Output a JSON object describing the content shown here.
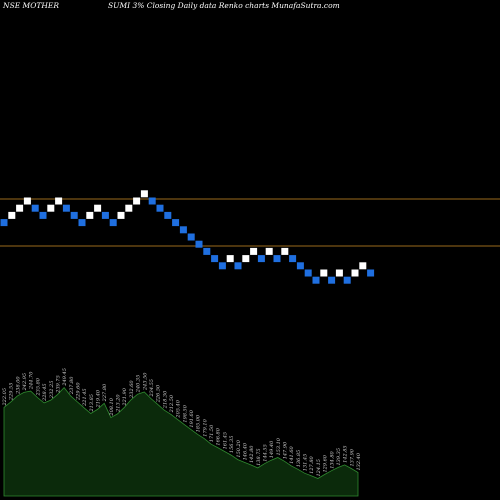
{
  "header": {
    "left": "NSE MOTHER",
    "right": "SUMI 3% Closing Daily data Renko charts MunafaSutra.com"
  },
  "colors": {
    "up": "#ffffff",
    "down": "#1f6fe0",
    "reference_line": "#9a6a1c",
    "volume_fill": "#0b2a0b",
    "volume_stroke": "#2f8a2f",
    "background": "#000000"
  },
  "chart_data": {
    "type": "renko",
    "brick_size": "3%",
    "reference_levels": [
      1,
      0
    ],
    "bricks": [
      {
        "d": "down",
        "level": -0.5
      },
      {
        "d": "up",
        "level": 0.5
      },
      {
        "d": "up",
        "level": 1.5
      },
      {
        "d": "up",
        "level": 2.5
      },
      {
        "d": "down",
        "level": 1.5
      },
      {
        "d": "down",
        "level": 0.5
      },
      {
        "d": "up",
        "level": 1.5
      },
      {
        "d": "up",
        "level": 2.5
      },
      {
        "d": "down",
        "level": 1.5
      },
      {
        "d": "down",
        "level": 0.5
      },
      {
        "d": "down",
        "level": -0.5
      },
      {
        "d": "up",
        "level": 0.5
      },
      {
        "d": "up",
        "level": 1.5
      },
      {
        "d": "down",
        "level": 0.5
      },
      {
        "d": "down",
        "level": -0.5
      },
      {
        "d": "up",
        "level": 0.5
      },
      {
        "d": "up",
        "level": 1.5
      },
      {
        "d": "up",
        "level": 2.5
      },
      {
        "d": "up",
        "level": 3.5
      },
      {
        "d": "down",
        "level": 2.5
      },
      {
        "d": "down",
        "level": 1.5
      },
      {
        "d": "down",
        "level": 0.5
      },
      {
        "d": "down",
        "level": -0.5
      },
      {
        "d": "down",
        "level": -1.5
      },
      {
        "d": "down",
        "level": -2.5
      },
      {
        "d": "down",
        "level": -3.5
      },
      {
        "d": "down",
        "level": -4.5
      },
      {
        "d": "down",
        "level": -5.5
      },
      {
        "d": "down",
        "level": -6.5
      },
      {
        "d": "up",
        "level": -5.5
      },
      {
        "d": "down",
        "level": -6.5
      },
      {
        "d": "up",
        "level": -5.5
      },
      {
        "d": "up",
        "level": -4.5
      },
      {
        "d": "down",
        "level": -5.5
      },
      {
        "d": "up",
        "level": -4.5
      },
      {
        "d": "down",
        "level": -5.5
      },
      {
        "d": "up",
        "level": -4.5
      },
      {
        "d": "down",
        "level": -5.5
      },
      {
        "d": "down",
        "level": -6.5
      },
      {
        "d": "down",
        "level": -7.5
      },
      {
        "d": "down",
        "level": -8.5
      },
      {
        "d": "up",
        "level": -7.5
      },
      {
        "d": "down",
        "level": -8.5
      },
      {
        "d": "up",
        "level": -7.5
      },
      {
        "d": "down",
        "level": -8.5
      },
      {
        "d": "up",
        "level": -7.5
      },
      {
        "d": "up",
        "level": -6.5
      },
      {
        "d": "down",
        "level": -7.5
      }
    ],
    "volume_labels": [
      "222.05",
      "229.55",
      "238.00",
      "242.95",
      "244.70",
      "235.80",
      "228.45",
      "232.25",
      "239.75",
      "249.45",
      "237.80",
      "229.60",
      "221.45",
      "213.85",
      "219.40",
      "227.80",
      "208.10",
      "213.20",
      "221.90",
      "232.60",
      "240.35",
      "243.50",
      "234.55",
      "226.50",
      "218.30",
      "212.50",
      "205.40",
      "198.50",
      "191.60",
      "185.00",
      "179.10",
      "171.50",
      "166.80",
      "161.45",
      "156.35",
      "150.20",
      "146.40",
      "142.80",
      "138.75",
      "144.55",
      "149.40",
      "153.10",
      "147.90",
      "141.60",
      "136.85",
      "131.45",
      "127.80",
      "124.15",
      "129.60",
      "134.80",
      "139.35",
      "142.85",
      "137.90",
      "132.40"
    ]
  }
}
